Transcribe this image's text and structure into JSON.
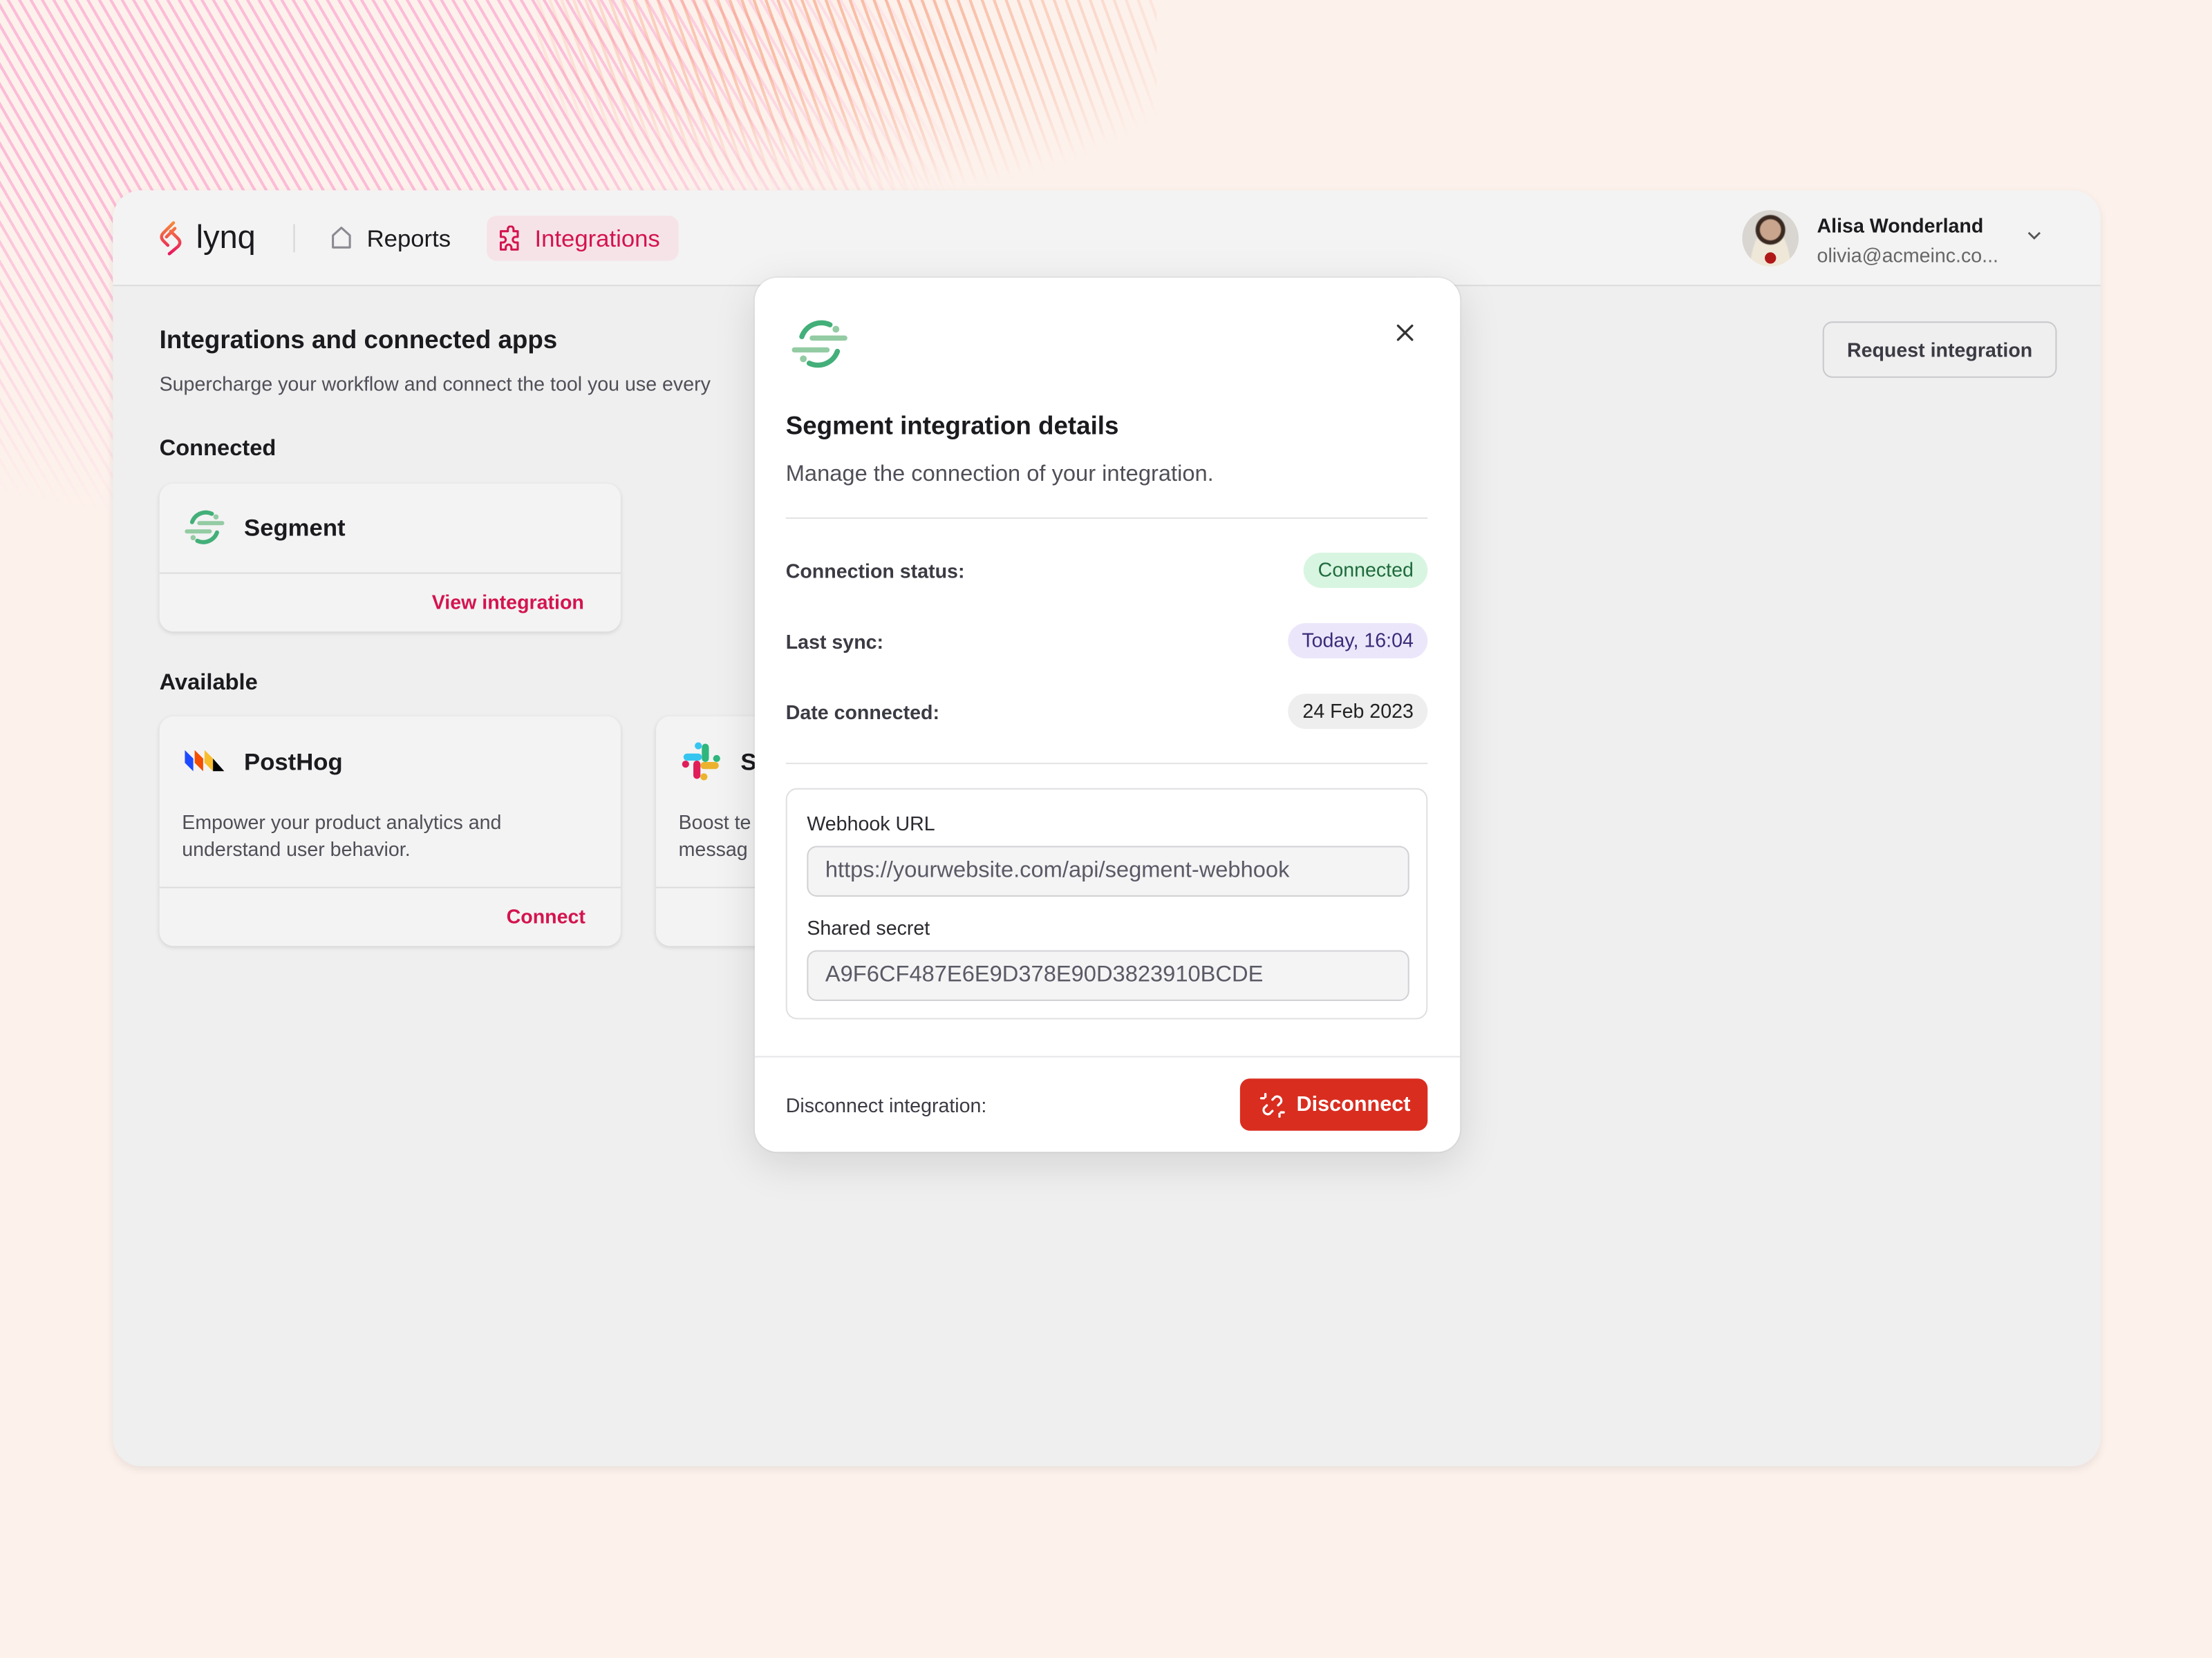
{
  "colors": {
    "accent": "#d4144f",
    "danger": "#d92d20",
    "connected_bg": "#d8f5e1",
    "sync_bg": "#ece6fb"
  },
  "nav": {
    "brand": "lynq",
    "items": [
      {
        "label": "Reports",
        "icon": "home-icon"
      },
      {
        "label": "Integrations",
        "icon": "puzzle-icon",
        "active": true
      }
    ]
  },
  "user": {
    "name": "Alisa Wonderland",
    "email": "olivia@acmeinc.co..."
  },
  "page": {
    "title": "Integrations and connected apps",
    "subtitle": "Supercharge your workflow and connect the tool you use every",
    "request_button": "Request integration"
  },
  "connected": {
    "heading": "Connected",
    "items": [
      {
        "name": "Segment",
        "action": "View integration"
      }
    ]
  },
  "available": {
    "heading": "Available",
    "items": [
      {
        "name": "PostHog",
        "description_1": "Empower your product analytics and",
        "description_2": "understand user behavior.",
        "action": "Connect"
      },
      {
        "name": "S",
        "description_1": "Boost te",
        "description_2": "messag"
      }
    ]
  },
  "modal": {
    "title": "Segment integration details",
    "subtitle": "Manage the connection of your integration.",
    "rows": [
      {
        "label": "Connection status:",
        "value": "Connected"
      },
      {
        "label": "Last sync:",
        "value": "Today, 16:04"
      },
      {
        "label": "Date connected:",
        "value": "24 Feb 2023"
      }
    ],
    "webhook_label": "Webhook URL",
    "webhook_value": "https://yourwebsite.com/api/segment-webhook",
    "secret_label": "Shared secret",
    "secret_value": "A9F6CF487E6E9D378E90D3823910BCDE",
    "footer_label": "Disconnect integration:",
    "disconnect_button": "Disconnect"
  }
}
